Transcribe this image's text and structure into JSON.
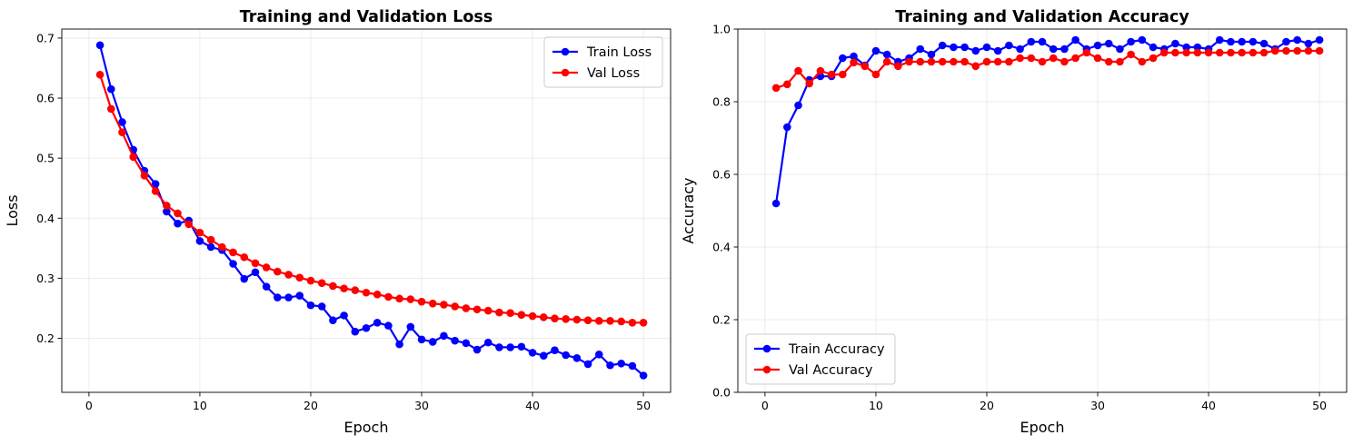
{
  "chart_data": [
    {
      "type": "line",
      "title": "Training and Validation Loss",
      "xlabel": "Epoch",
      "ylabel": "Loss",
      "xlim": [
        -2.45,
        52.45
      ],
      "ylim": [
        0.11,
        0.715
      ],
      "xticks": [
        0,
        10,
        20,
        30,
        40,
        50
      ],
      "xtick_labels": [
        "0",
        "10",
        "20",
        "30",
        "40",
        "50"
      ],
      "yticks": [
        0.2,
        0.3,
        0.4,
        0.5,
        0.6,
        0.7
      ],
      "ytick_labels": [
        "0.2",
        "0.3",
        "0.4",
        "0.5",
        "0.6",
        "0.7"
      ],
      "grid": true,
      "legend_position": "top-right",
      "x": [
        1,
        2,
        3,
        4,
        5,
        6,
        7,
        8,
        9,
        10,
        11,
        12,
        13,
        14,
        15,
        16,
        17,
        18,
        19,
        20,
        21,
        22,
        23,
        24,
        25,
        26,
        27,
        28,
        29,
        30,
        31,
        32,
        33,
        34,
        35,
        36,
        37,
        38,
        39,
        40,
        41,
        42,
        43,
        44,
        45,
        46,
        47,
        48,
        49,
        50
      ],
      "series": [
        {
          "name": "Train Loss",
          "color": "#0000ff",
          "values": [
            0.688,
            0.615,
            0.56,
            0.514,
            0.479,
            0.457,
            0.411,
            0.391,
            0.396,
            0.362,
            0.352,
            0.347,
            0.324,
            0.299,
            0.31,
            0.286,
            0.268,
            0.268,
            0.271,
            0.255,
            0.253,
            0.23,
            0.238,
            0.211,
            0.217,
            0.226,
            0.221,
            0.19,
            0.219,
            0.198,
            0.194,
            0.204,
            0.196,
            0.192,
            0.181,
            0.193,
            0.185,
            0.185,
            0.186,
            0.176,
            0.171,
            0.18,
            0.172,
            0.167,
            0.157,
            0.173,
            0.155,
            0.158,
            0.154,
            0.138
          ]
        },
        {
          "name": "Val Loss",
          "color": "#ff0000",
          "values": [
            0.639,
            0.582,
            0.543,
            0.502,
            0.471,
            0.445,
            0.421,
            0.408,
            0.39,
            0.376,
            0.364,
            0.352,
            0.343,
            0.335,
            0.325,
            0.318,
            0.311,
            0.306,
            0.301,
            0.296,
            0.292,
            0.287,
            0.283,
            0.28,
            0.276,
            0.273,
            0.269,
            0.266,
            0.265,
            0.261,
            0.258,
            0.256,
            0.253,
            0.25,
            0.248,
            0.246,
            0.243,
            0.242,
            0.239,
            0.237,
            0.235,
            0.233,
            0.232,
            0.231,
            0.23,
            0.229,
            0.229,
            0.228,
            0.226,
            0.226
          ]
        }
      ]
    },
    {
      "type": "line",
      "title": "Training and Validation Accuracy",
      "xlabel": "Epoch",
      "ylabel": "Accuracy",
      "xlim": [
        -2.45,
        52.45
      ],
      "ylim": [
        0,
        1.0
      ],
      "xticks": [
        0,
        10,
        20,
        30,
        40,
        50
      ],
      "xtick_labels": [
        "0",
        "10",
        "20",
        "30",
        "40",
        "50"
      ],
      "yticks": [
        0.0,
        0.2,
        0.4,
        0.6,
        0.8,
        1.0
      ],
      "ytick_labels": [
        "0.0",
        "0.2",
        "0.4",
        "0.6",
        "0.8",
        "1.0"
      ],
      "grid": true,
      "legend_position": "bottom-left",
      "x": [
        1,
        2,
        3,
        4,
        5,
        6,
        7,
        8,
        9,
        10,
        11,
        12,
        13,
        14,
        15,
        16,
        17,
        18,
        19,
        20,
        21,
        22,
        23,
        24,
        25,
        26,
        27,
        28,
        29,
        30,
        31,
        32,
        33,
        34,
        35,
        36,
        37,
        38,
        39,
        40,
        41,
        42,
        43,
        44,
        45,
        46,
        47,
        48,
        49,
        50
      ],
      "series": [
        {
          "name": "Train Accuracy",
          "color": "#0000ff",
          "values": [
            0.52,
            0.73,
            0.79,
            0.86,
            0.87,
            0.87,
            0.92,
            0.925,
            0.9,
            0.94,
            0.93,
            0.91,
            0.92,
            0.945,
            0.93,
            0.955,
            0.95,
            0.95,
            0.94,
            0.95,
            0.94,
            0.955,
            0.945,
            0.965,
            0.965,
            0.945,
            0.945,
            0.97,
            0.945,
            0.955,
            0.96,
            0.945,
            0.965,
            0.97,
            0.95,
            0.945,
            0.96,
            0.95,
            0.95,
            0.945,
            0.97,
            0.965,
            0.965,
            0.965,
            0.96,
            0.945,
            0.965,
            0.97,
            0.96,
            0.97
          ]
        },
        {
          "name": "Val Accuracy",
          "color": "#ff0000",
          "values": [
            0.838,
            0.848,
            0.885,
            0.85,
            0.885,
            0.875,
            0.875,
            0.908,
            0.898,
            0.875,
            0.91,
            0.898,
            0.91,
            0.91,
            0.91,
            0.91,
            0.91,
            0.91,
            0.898,
            0.91,
            0.91,
            0.91,
            0.92,
            0.92,
            0.91,
            0.92,
            0.91,
            0.92,
            0.935,
            0.92,
            0.91,
            0.91,
            0.93,
            0.91,
            0.92,
            0.935,
            0.935,
            0.935,
            0.935,
            0.935,
            0.935,
            0.935,
            0.935,
            0.935,
            0.935,
            0.94,
            0.94,
            0.94,
            0.94,
            0.94
          ]
        }
      ]
    }
  ]
}
